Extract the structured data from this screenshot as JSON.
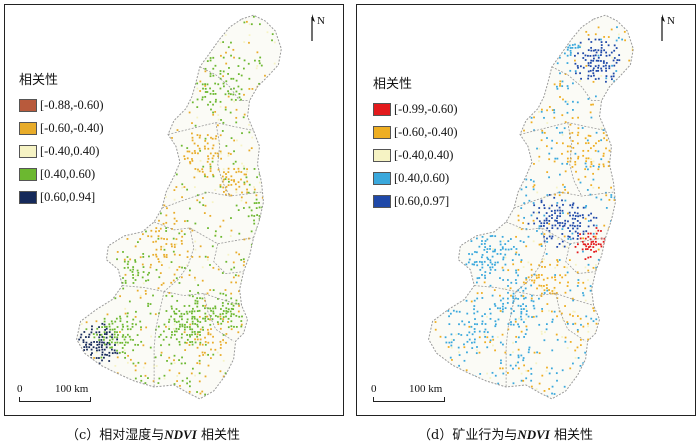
{
  "panels": [
    {
      "legend": {
        "title": "相关性",
        "items": [
          {
            "label": "[-0.88,-0.60)",
            "color": "#b85a3c"
          },
          {
            "label": "[-0.60,-0.40)",
            "color": "#e8ac2a"
          },
          {
            "label": "[-0.40,0.40)",
            "color": "#f6f3c4"
          },
          {
            "label": "[0.40,0.60)",
            "color": "#6cb830"
          },
          {
            "label": "[0.60,0.94]",
            "color": "#15295a"
          }
        ]
      },
      "north_label": "N",
      "scale": {
        "zero": "0",
        "length": "100 km"
      },
      "caption": {
        "prefix": "（c）相对湿度与",
        "emphasis": "NDVI",
        "suffix": "相关性"
      },
      "pattern": "green"
    },
    {
      "legend": {
        "title": "相关性",
        "items": [
          {
            "label": "[-0.99,-0.60)",
            "color": "#e31a1c"
          },
          {
            "label": "[-0.60,-0.40)",
            "color": "#eeae22"
          },
          {
            "label": "[-0.40,0.40)",
            "color": "#f6f3c4"
          },
          {
            "label": "[0.40,0.60)",
            "color": "#3aa8dc"
          },
          {
            "label": "[0.60,0.97]",
            "color": "#1f48a8"
          }
        ]
      },
      "north_label": "N",
      "scale": {
        "zero": "0",
        "length": "100 km"
      },
      "caption": {
        "prefix": "（d）矿业行为与",
        "emphasis": "NDVI",
        "suffix": "相关性"
      },
      "pattern": "blue"
    }
  ]
}
